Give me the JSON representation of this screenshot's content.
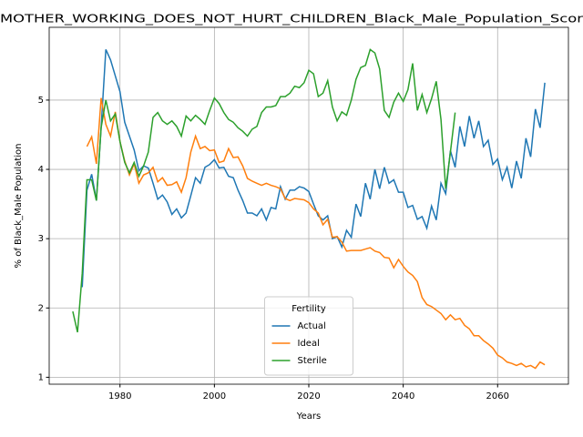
{
  "chart_data": {
    "type": "line",
    "title": "MOTHER_WORKING_DOES_NOT_HURT_CHILDREN_Black_Male_Population_Scor",
    "x_label": "Years",
    "y_label": "% of Black_Male Population",
    "legend_title": "Fertility",
    "legend": "lower center",
    "grid": true,
    "xlim": [
      1965,
      2075
    ],
    "ylim": [
      0.9,
      6.05
    ],
    "xticks": [
      1980,
      2000,
      2020,
      2040,
      2060
    ],
    "yticks": [
      1,
      2,
      3,
      4,
      5
    ],
    "x": [
      1970,
      1971,
      1972,
      1973,
      1974,
      1975,
      1976,
      1977,
      1978,
      1979,
      1980,
      1981,
      1982,
      1983,
      1984,
      1985,
      1986,
      1987,
      1988,
      1989,
      1990,
      1991,
      1992,
      1993,
      1994,
      1995,
      1996,
      1997,
      1998,
      1999,
      2000,
      2001,
      2002,
      2003,
      2004,
      2005,
      2006,
      2007,
      2008,
      2009,
      2010,
      2011,
      2012,
      2013,
      2014,
      2015,
      2016,
      2017,
      2018,
      2019,
      2020,
      2021,
      2022,
      2023,
      2024,
      2025,
      2026,
      2027,
      2028,
      2029,
      2030,
      2031,
      2032,
      2033,
      2034,
      2035,
      2036,
      2037,
      2038,
      2039,
      2040,
      2041,
      2042,
      2043,
      2044,
      2045,
      2046,
      2047,
      2048,
      2049,
      2050,
      2051,
      2052,
      2053,
      2054,
      2055,
      2056,
      2057,
      2058,
      2059,
      2060,
      2061,
      2062,
      2063,
      2064,
      2065,
      2066,
      2067,
      2068,
      2069,
      2070
    ],
    "series": [
      {
        "name": "Actual",
        "color": "#1f77b4",
        "values": [
          null,
          null,
          2.3,
          3.7,
          3.93,
          3.55,
          4.6,
          5.73,
          5.58,
          5.35,
          5.12,
          4.68,
          4.48,
          4.28,
          3.98,
          4.05,
          4.02,
          3.8,
          3.57,
          3.63,
          3.53,
          3.35,
          3.43,
          3.3,
          3.37,
          3.62,
          3.88,
          3.8,
          4.03,
          4.07,
          4.14,
          4.02,
          4.03,
          3.9,
          3.88,
          3.7,
          3.55,
          3.37,
          3.37,
          3.33,
          3.43,
          3.27,
          3.45,
          3.43,
          3.75,
          3.57,
          3.7,
          3.7,
          3.75,
          3.73,
          3.68,
          3.5,
          3.33,
          3.27,
          3.33,
          3.0,
          3.03,
          2.88,
          3.12,
          3.02,
          3.5,
          3.32,
          3.8,
          3.57,
          4.0,
          3.72,
          4.03,
          3.8,
          3.85,
          3.67,
          3.67,
          3.45,
          3.48,
          3.28,
          3.32,
          3.15,
          3.47,
          3.27,
          3.8,
          3.65,
          4.27,
          4.03,
          4.62,
          4.33,
          4.77,
          4.45,
          4.7,
          4.33,
          4.42,
          4.07,
          4.15,
          3.85,
          4.03,
          3.73,
          4.12,
          3.87,
          4.45,
          4.18,
          4.87,
          4.6,
          5.25
        ]
      },
      {
        "name": "Ideal",
        "color": "#ff7f0e",
        "values": [
          null,
          null,
          null,
          4.33,
          4.47,
          4.08,
          5.03,
          4.65,
          4.48,
          4.83,
          4.4,
          4.12,
          3.92,
          4.08,
          3.8,
          3.92,
          3.95,
          4.03,
          3.82,
          3.88,
          3.77,
          3.78,
          3.82,
          3.67,
          3.88,
          4.25,
          4.48,
          4.3,
          4.33,
          4.27,
          4.28,
          4.1,
          4.12,
          4.3,
          4.17,
          4.18,
          4.05,
          3.87,
          3.83,
          3.8,
          3.77,
          3.8,
          3.77,
          3.75,
          3.72,
          3.58,
          3.55,
          3.58,
          3.57,
          3.56,
          3.52,
          3.43,
          3.37,
          3.2,
          3.28,
          3.02,
          3.03,
          2.95,
          2.82,
          2.83,
          2.83,
          2.83,
          2.85,
          2.87,
          2.82,
          2.8,
          2.73,
          2.72,
          2.58,
          2.7,
          2.6,
          2.52,
          2.47,
          2.38,
          2.15,
          2.05,
          2.02,
          1.97,
          1.92,
          1.83,
          1.9,
          1.83,
          1.85,
          1.75,
          1.7,
          1.6,
          1.6,
          1.53,
          1.48,
          1.42,
          1.32,
          1.28,
          1.22,
          1.2,
          1.17,
          1.2,
          1.15,
          1.17,
          1.13,
          1.22,
          1.18
        ]
      },
      {
        "name": "Sterile",
        "color": "#2ca02c",
        "values": [
          1.95,
          1.65,
          2.5,
          3.85,
          3.85,
          3.55,
          4.6,
          5.0,
          4.7,
          4.8,
          4.4,
          4.1,
          3.95,
          4.1,
          3.9,
          4.05,
          4.25,
          4.75,
          4.82,
          4.7,
          4.65,
          4.7,
          4.62,
          4.48,
          4.77,
          4.7,
          4.78,
          4.72,
          4.65,
          4.85,
          5.03,
          4.95,
          4.82,
          4.72,
          4.68,
          4.6,
          4.55,
          4.48,
          4.58,
          4.62,
          4.82,
          4.9,
          4.9,
          4.92,
          5.05,
          5.05,
          5.1,
          5.2,
          5.18,
          5.25,
          5.43,
          5.38,
          5.05,
          5.1,
          5.28,
          4.9,
          4.7,
          4.83,
          4.78,
          5.0,
          5.3,
          5.47,
          5.5,
          5.73,
          5.68,
          5.45,
          4.85,
          4.75,
          4.97,
          5.1,
          4.98,
          5.15,
          5.53,
          4.85,
          5.08,
          4.82,
          5.02,
          5.27,
          4.72,
          3.72,
          4.25,
          4.82,
          null,
          null,
          null,
          null,
          null,
          null,
          null,
          null,
          null,
          null,
          null,
          null,
          null,
          null,
          null,
          null,
          null,
          null,
          null
        ]
      }
    ]
  }
}
